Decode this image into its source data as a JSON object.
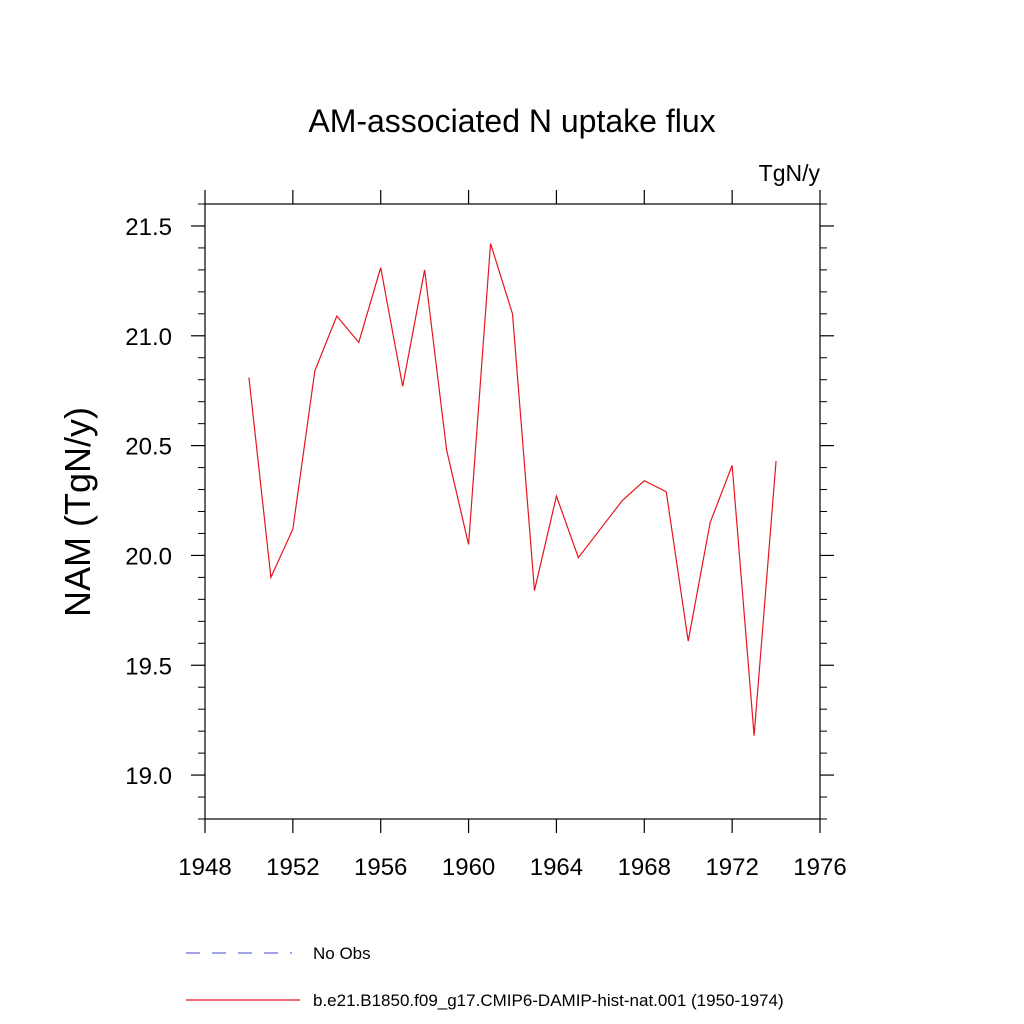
{
  "chart_data": {
    "type": "line",
    "title": "AM-associated N uptake flux",
    "units_label": "TgN/y",
    "ylabel": "NAM  (TgN/y)",
    "xlabel": "",
    "xlim": [
      1948,
      1976
    ],
    "ylim": [
      18.8,
      21.6
    ],
    "x_major_ticks": [
      1948,
      1952,
      1956,
      1960,
      1964,
      1968,
      1972,
      1976
    ],
    "x_tick_labels": [
      "1948",
      "1952",
      "1956",
      "1960",
      "1964",
      "1968",
      "1972",
      "1976"
    ],
    "y_major_ticks": [
      19.0,
      19.5,
      20.0,
      20.5,
      21.0,
      21.5
    ],
    "y_tick_labels": [
      "19.0",
      "19.5",
      "20.0",
      "20.5",
      "21.0",
      "21.5"
    ],
    "grid": false,
    "legend_position": "bottom",
    "series": [
      {
        "name": "b.e21.B1850.f09_g17.CMIP6-DAMIP-hist-nat.001 (1950-1974)",
        "color": "#e8141c",
        "style": "solid",
        "x": [
          1950,
          1951,
          1952,
          1953,
          1954,
          1955,
          1956,
          1957,
          1958,
          1959,
          1960,
          1961,
          1962,
          1963,
          1964,
          1965,
          1966,
          1967,
          1968,
          1969,
          1970,
          1971,
          1972,
          1973,
          1974
        ],
        "y": [
          20.81,
          19.9,
          20.12,
          20.84,
          21.09,
          20.97,
          21.31,
          20.77,
          21.3,
          20.48,
          20.05,
          21.42,
          21.1,
          19.84,
          20.27,
          19.99,
          20.12,
          20.25,
          20.34,
          20.29,
          19.61,
          20.15,
          20.41,
          19.18,
          20.43
        ]
      }
    ],
    "legend": [
      {
        "label": "No Obs",
        "color": "#6b6bd6",
        "style": "dashed"
      },
      {
        "label": "b.e21.B1850.f09_g17.CMIP6-DAMIP-hist-nat.001 (1950-1974)",
        "color": "#e8141c",
        "style": "solid"
      }
    ]
  }
}
